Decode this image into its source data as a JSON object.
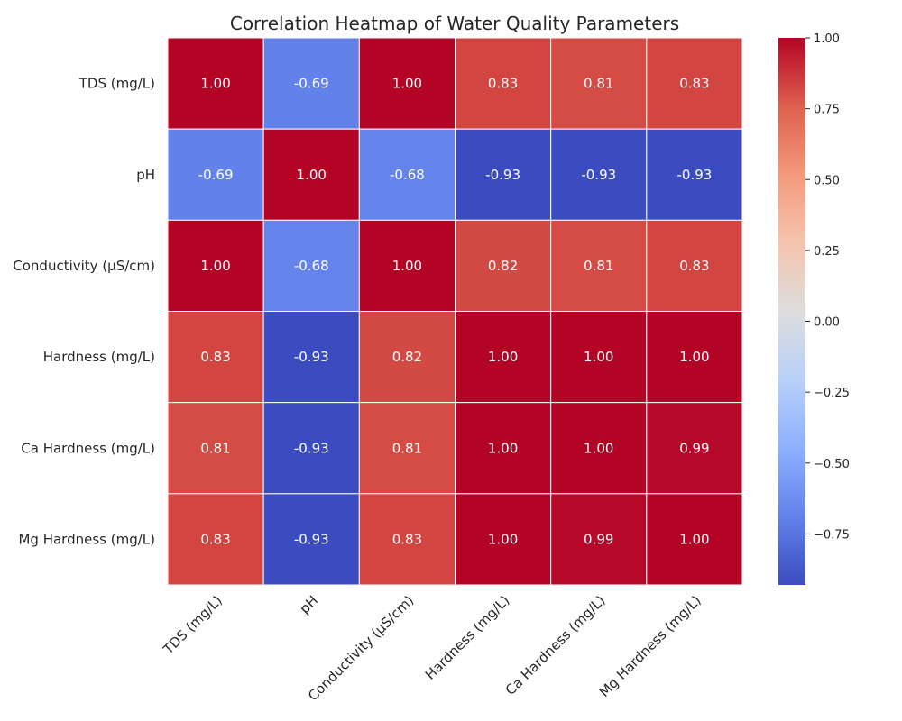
{
  "chart_data": {
    "type": "heatmap",
    "title": "Correlation Heatmap of Water Quality Parameters",
    "xlabel": "",
    "ylabel": "",
    "x_labels": [
      "TDS (mg/L)",
      "pH",
      "Conductivity (µS/cm)",
      "Hardness (mg/L)",
      "Ca Hardness (mg/L)",
      "Mg Hardness (mg/L)"
    ],
    "y_labels": [
      "TDS (mg/L)",
      "pH",
      "Conductivity (µS/cm)",
      "Hardness (mg/L)",
      "Ca Hardness (mg/L)",
      "Mg Hardness (mg/L)"
    ],
    "values": [
      [
        1.0,
        -0.69,
        1.0,
        0.83,
        0.81,
        0.83
      ],
      [
        -0.69,
        1.0,
        -0.68,
        -0.93,
        -0.93,
        -0.93
      ],
      [
        1.0,
        -0.68,
        1.0,
        0.82,
        0.81,
        0.83
      ],
      [
        0.83,
        -0.93,
        0.82,
        1.0,
        1.0,
        1.0
      ],
      [
        0.81,
        -0.93,
        0.81,
        1.0,
        1.0,
        0.99
      ],
      [
        0.83,
        -0.93,
        0.83,
        1.0,
        0.99,
        1.0
      ]
    ],
    "value_format": "0.00",
    "colormap": "coolwarm",
    "colorbar": {
      "range": [
        -0.93,
        1.0
      ],
      "ticks": [
        1.0,
        0.75,
        0.5,
        0.25,
        0.0,
        -0.25,
        -0.5,
        -0.75
      ],
      "tick_labels": [
        "1.00",
        "0.75",
        "0.50",
        "0.25",
        "0.00",
        "−0.25",
        "−0.50",
        "−0.75"
      ]
    },
    "grid": true
  }
}
